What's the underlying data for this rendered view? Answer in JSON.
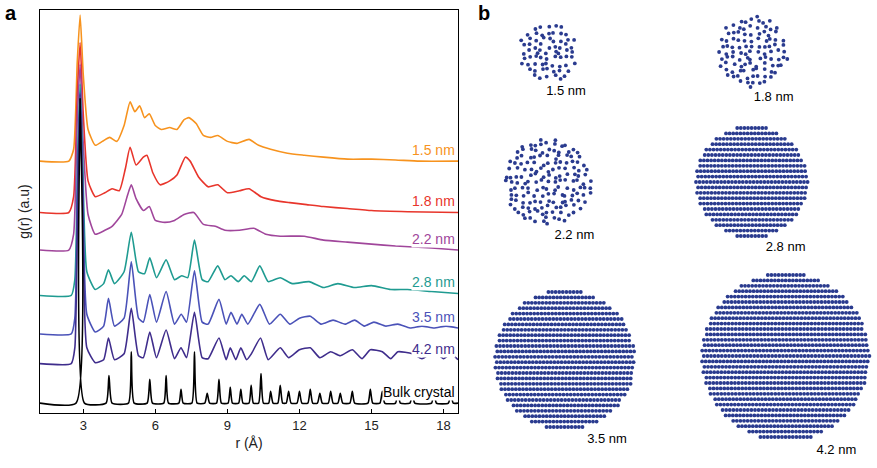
{
  "chart_data": {
    "type": "line",
    "panel": "a",
    "x_label": "r (Å)",
    "y_label": "g(r) (a.u)",
    "xlim": [
      1.2,
      18.6
    ],
    "xticks": [
      3,
      6,
      9,
      12,
      15,
      18
    ],
    "ylim": [
      0,
      102
    ],
    "tick_labels": "x",
    "grid": false,
    "series": [
      {
        "name": "1.5 nm",
        "color": "#f7931e",
        "x": [
          1.2,
          2.4,
          2.6,
          2.75,
          2.87,
          3.0,
          3.2,
          3.5,
          3.8,
          4.1,
          4.4,
          4.7,
          4.95,
          5.15,
          5.35,
          5.55,
          5.75,
          6.0,
          6.25,
          6.6,
          6.9,
          7.2,
          7.4,
          7.7,
          8.0,
          8.3,
          8.6,
          9.0,
          9.4,
          9.9,
          10.3,
          10.8,
          11.5,
          12.2,
          13,
          14,
          15,
          16,
          17,
          18.6
        ],
        "values": [
          63.75,
          63.75,
          66.75,
          88.75,
          100.75,
          85.75,
          71.75,
          67.75,
          68.75,
          69.75,
          68.75,
          72.75,
          78.75,
          76.25,
          77.75,
          74.75,
          75.75,
          72.75,
          71.75,
          72.25,
          71.75,
          74.25,
          74.75,
          73.25,
          70.25,
          69.75,
          70.25,
          68.75,
          68.25,
          69.25,
          67.75,
          66.75,
          65.75,
          65.25,
          64.75,
          64.25,
          64.25,
          64.05,
          63.75,
          63.75
        ]
      },
      {
        "name": "1.8 nm",
        "color": "#e8352b",
        "x": [
          1.2,
          2.4,
          2.6,
          2.75,
          2.87,
          3.0,
          3.2,
          3.5,
          3.9,
          4.2,
          4.5,
          4.75,
          4.95,
          5.2,
          5.5,
          5.65,
          5.9,
          6.2,
          6.6,
          6.9,
          7.25,
          7.45,
          7.8,
          8.2,
          8.6,
          9.0,
          9.5,
          9.9,
          10.4,
          11,
          11.6,
          12.3,
          13,
          14,
          15,
          16.5,
          18.6
        ],
        "values": [
          50.75,
          50.75,
          54.75,
          80.75,
          93.75,
          75.75,
          58.75,
          54.75,
          55.75,
          56.75,
          56.25,
          61.75,
          67.25,
          62.75,
          64.75,
          65.25,
          60.75,
          57.75,
          58.75,
          60.25,
          64.75,
          63.75,
          59.75,
          57.25,
          57.75,
          55.75,
          56.25,
          56.75,
          54.75,
          53.75,
          53.25,
          52.75,
          52.25,
          51.75,
          51.25,
          50.95,
          50.75
        ]
      },
      {
        "name": "2.2 nm",
        "color": "#a0469b",
        "x": [
          1.2,
          2.4,
          2.6,
          2.75,
          2.87,
          3.0,
          3.2,
          3.5,
          3.9,
          4.2,
          4.6,
          4.85,
          5.0,
          5.2,
          5.5,
          5.75,
          6.0,
          6.4,
          6.8,
          7.2,
          7.6,
          8.0,
          8.5,
          8.9,
          9.5,
          10.1,
          10.6,
          11.2,
          12.2,
          13,
          14,
          15,
          16,
          17.5,
          18.6
        ],
        "values": [
          41.25,
          41.25,
          45.25,
          74.25,
          88.25,
          68.25,
          50.25,
          45.25,
          46.25,
          47.25,
          50.25,
          55.25,
          57.75,
          54.25,
          51.25,
          52.25,
          48.75,
          48.25,
          48.75,
          50.25,
          50.75,
          47.75,
          47.25,
          46.25,
          46.25,
          46.75,
          45.25,
          44.75,
          44.75,
          43.75,
          43.25,
          42.75,
          42.25,
          41.75,
          41.25
        ]
      },
      {
        "name": "2.8 nm",
        "color": "#1f9b91",
        "x": [
          1.2,
          2.5,
          2.65,
          2.77,
          2.87,
          2.98,
          3.15,
          3.5,
          3.85,
          4.05,
          4.3,
          4.7,
          5.0,
          5.3,
          5.55,
          5.77,
          6.05,
          6.45,
          6.8,
          7.1,
          7.35,
          7.63,
          7.95,
          8.2,
          8.6,
          8.9,
          9.15,
          9.45,
          9.7,
          10.0,
          10.35,
          10.7,
          11.2,
          11.7,
          12.4,
          13,
          13.6,
          14.3,
          15,
          15.8,
          16.5,
          17.5,
          18.6
        ],
        "values": [
          29.75,
          29.75,
          33.75,
          65.75,
          83.25,
          63.75,
          35.75,
          31.25,
          32.75,
          36.25,
          32.75,
          35.75,
          45.75,
          35.75,
          35.25,
          39.25,
          34.25,
          38.75,
          33.75,
          34.75,
          34.25,
          43.75,
          33.75,
          33.25,
          37.25,
          33.75,
          34.75,
          33.25,
          34.75,
          33.25,
          37.25,
          33.25,
          34.25,
          32.75,
          33.25,
          31.75,
          32.75,
          31.75,
          32.25,
          31.25,
          31.25,
          30.75,
          30.25
        ]
      },
      {
        "name": "3.5 nm",
        "color": "#4a52b8",
        "x": [
          1.2,
          2.5,
          2.65,
          2.77,
          2.87,
          2.98,
          3.15,
          3.5,
          3.85,
          4.05,
          4.3,
          4.7,
          5.0,
          5.3,
          5.5,
          5.77,
          6.05,
          6.45,
          6.8,
          7.08,
          7.3,
          7.63,
          7.95,
          8.2,
          8.65,
          8.95,
          9.15,
          9.4,
          9.6,
          9.85,
          10.35,
          10.75,
          11.2,
          11.6,
          12.0,
          12.45,
          12.9,
          13.4,
          13.9,
          14.3,
          14.7,
          15.1,
          15.6,
          16.1,
          16.6,
          17.1,
          17.6,
          18.1,
          18.6
        ],
        "values": [
          20,
          20,
          24,
          60,
          81.25,
          58,
          25,
          20.5,
          22,
          29,
          22,
          24,
          38.25,
          24,
          23,
          30,
          23,
          30.75,
          22.5,
          25,
          23,
          36,
          23,
          22.5,
          28.75,
          22.5,
          25.5,
          22.5,
          25,
          22.5,
          27.5,
          22.5,
          25,
          22.5,
          24,
          24.5,
          22.5,
          23.5,
          22.5,
          23.5,
          22,
          23,
          22,
          22.5,
          21.5,
          22,
          21.5,
          22,
          21.5
        ]
      },
      {
        "name": "4.2 nm",
        "color": "#3f2d8c",
        "x": [
          1.2,
          2.5,
          2.65,
          2.77,
          2.87,
          2.98,
          3.15,
          3.5,
          3.85,
          4.05,
          4.3,
          4.7,
          5.0,
          5.3,
          5.5,
          5.77,
          6.05,
          6.45,
          6.8,
          7.07,
          7.3,
          7.63,
          7.95,
          8.2,
          8.65,
          8.95,
          9.12,
          9.35,
          9.56,
          9.8,
          10.0,
          10.38,
          10.7,
          11.2,
          11.55,
          12.0,
          12.45,
          12.85,
          13.3,
          13.7,
          14.2,
          14.6,
          14.95,
          15.45,
          15.8,
          16.1,
          16.7,
          17.1,
          17.6,
          18.0,
          18.3,
          18.6
        ],
        "values": [
          12.5,
          12.5,
          16.5,
          55.5,
          80.75,
          52.5,
          16.5,
          12.75,
          13.5,
          19,
          13.5,
          15,
          26.5,
          14.5,
          14,
          20.5,
          14,
          21,
          13.75,
          16.5,
          14,
          25.5,
          14,
          13.75,
          19,
          13.5,
          16.5,
          13.5,
          16.5,
          13.5,
          15,
          19,
          13.5,
          16.5,
          14,
          16,
          16.5,
          14,
          15.5,
          14.5,
          16,
          13.75,
          16,
          15.5,
          13.75,
          15.5,
          15,
          13.75,
          15.5,
          13.75,
          15,
          13.5
        ]
      },
      {
        "name": "Bulk crystal",
        "color": "#000000",
        "x": [
          1.2,
          2.7,
          2.87,
          3.05,
          3.95,
          4.07,
          4.2,
          4.88,
          5.0,
          5.12,
          5.66,
          5.77,
          5.88,
          6.35,
          6.45,
          6.55,
          6.98,
          7.07,
          7.16,
          7.52,
          7.63,
          7.74,
          8.06,
          8.16,
          8.26,
          8.55,
          8.65,
          8.75,
          9.03,
          9.12,
          9.21,
          9.47,
          9.56,
          9.65,
          9.9,
          9.99,
          10.08,
          10.3,
          10.4,
          10.5,
          10.72,
          10.8,
          10.9,
          11.1,
          11.2,
          11.3,
          11.45,
          11.55,
          11.65,
          11.9,
          12.0,
          12.1,
          12.35,
          12.45,
          12.55,
          12.75,
          12.85,
          12.95,
          13.2,
          13.3,
          13.4,
          13.6,
          13.7,
          13.8,
          14.1,
          14.2,
          14.3,
          14.85,
          14.95,
          15.05,
          15.35,
          15.45,
          15.55,
          16.0,
          16.1,
          16.2,
          16.6,
          16.7,
          16.8,
          17.5,
          17.6,
          17.7,
          18.2,
          18.3,
          18.4,
          18.6
        ],
        "values": [
          2.5,
          2.5,
          79.5,
          2.5,
          2.5,
          9.5,
          2.5,
          2.5,
          15.5,
          2.5,
          2.5,
          8.5,
          2.5,
          2.5,
          9.5,
          2.5,
          2.5,
          6,
          2.5,
          2.5,
          15.5,
          2.5,
          2.5,
          5,
          2.5,
          2.5,
          8.5,
          2.5,
          2.5,
          6.5,
          2.5,
          2.5,
          6,
          2.5,
          2.5,
          7,
          2.5,
          2.5,
          10,
          2.5,
          2.5,
          5.5,
          2.5,
          2.5,
          7,
          2.5,
          2.5,
          5.5,
          2.5,
          2.5,
          5.5,
          2.5,
          2.5,
          6,
          2.5,
          2.5,
          5,
          2.5,
          2.5,
          5.5,
          2.5,
          2.5,
          5,
          2.5,
          2.5,
          5.5,
          2.5,
          2.5,
          6,
          2.5,
          2.5,
          5.5,
          2.5,
          2.5,
          6,
          2.5,
          2.5,
          5,
          2.5,
          2.5,
          6,
          2.5,
          2.5,
          5,
          2.5,
          2.5
        ]
      }
    ]
  },
  "illustration": {
    "panel": "b",
    "particles": [
      {
        "label": "1.5 nm",
        "diameter": 1.5
      },
      {
        "label": "1.8 nm",
        "diameter": 1.8
      },
      {
        "label": "2.2 nm",
        "diameter": 2.2
      },
      {
        "label": "2.8 nm",
        "diameter": 2.8
      },
      {
        "label": "3.5 nm",
        "diameter": 3.5
      },
      {
        "label": "4.2 nm",
        "diameter": 4.2
      }
    ]
  }
}
